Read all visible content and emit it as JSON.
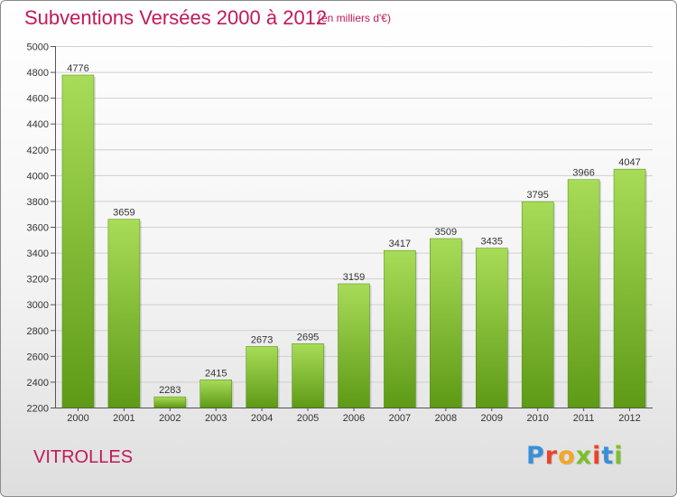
{
  "chart_data": {
    "type": "bar",
    "title": "Subventions Versées 2000 à 2012",
    "subtitle": "(en milliers d'€)",
    "categories": [
      "2000",
      "2001",
      "2002",
      "2003",
      "2004",
      "2005",
      "2006",
      "2007",
      "2008",
      "2009",
      "2010",
      "2011",
      "2012"
    ],
    "values": [
      4776,
      3659,
      2283,
      2415,
      2673,
      2695,
      3159,
      3417,
      3509,
      3435,
      3795,
      3966,
      4047
    ],
    "ylim": [
      2200,
      5000
    ],
    "yticks": [
      2200,
      2400,
      2600,
      2800,
      3000,
      3200,
      3400,
      3600,
      3800,
      4000,
      4200,
      4400,
      4600,
      4800,
      5000
    ],
    "xlabel": "",
    "ylabel": "",
    "grid": true,
    "bar_color": "#7cbf2e",
    "bar_color_light": "#a8dc58",
    "bar_color_dark": "#5e9a16"
  },
  "footer": {
    "commune": "VITROLLES",
    "logo_text": "Proxiti"
  },
  "colors": {
    "title": "#c2185b",
    "logo": [
      "#3a8fd6",
      "#e8452c",
      "#f5a623",
      "#7cbf2e",
      "#e8452c",
      "#3a8fd6",
      "#7cbf2e"
    ]
  }
}
